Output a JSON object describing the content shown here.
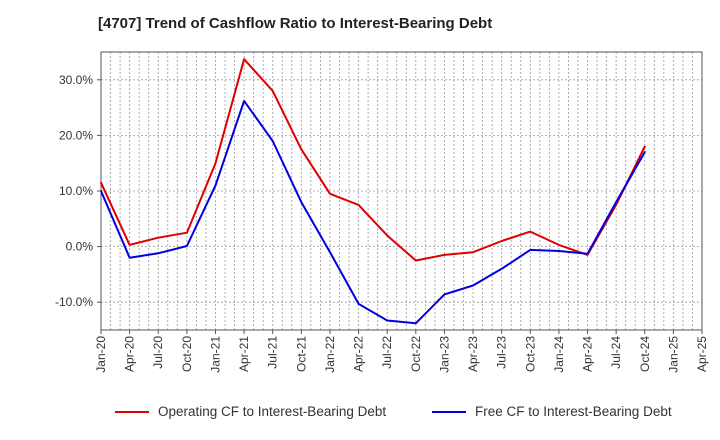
{
  "chart_data": {
    "type": "line",
    "title": "[4707]  Trend of Cashflow Ratio to Interest-Bearing Debt",
    "xlabel": "",
    "ylabel": "",
    "x_ticks": [
      "Jan-20",
      "Apr-20",
      "Jul-20",
      "Oct-20",
      "Jan-21",
      "Apr-21",
      "Jul-21",
      "Oct-21",
      "Jan-22",
      "Apr-22",
      "Jul-22",
      "Oct-22",
      "Jan-23",
      "Apr-23",
      "Jul-23",
      "Oct-23",
      "Jan-24",
      "Apr-24",
      "Jul-24",
      "Oct-24",
      "Jan-25",
      "Apr-25"
    ],
    "y_ticks": [
      "30.0%",
      "20.0%",
      "10.0%",
      "0.0%",
      "-10.0%"
    ],
    "y_tick_values": [
      30,
      20,
      10,
      0,
      -10
    ],
    "ylim": [
      -15,
      35
    ],
    "grid": true,
    "legend_position": "bottom",
    "x": [
      "Jan-20",
      "Apr-20",
      "Jul-20",
      "Oct-20",
      "Jan-21",
      "Apr-21",
      "Jul-21",
      "Oct-21",
      "Jan-22",
      "Apr-22",
      "Jul-22",
      "Oct-22",
      "Jan-23",
      "Apr-23",
      "Jul-23",
      "Oct-23",
      "Jan-24",
      "Apr-24",
      "Jul-24",
      "Oct-24"
    ],
    "series": [
      {
        "name": "Operating CF to Interest-Bearing Debt",
        "color": "#e00000",
        "values": [
          11.5,
          0.3,
          1.6,
          2.5,
          15.0,
          33.7,
          28.0,
          17.5,
          9.5,
          7.5,
          2.0,
          -2.5,
          -1.5,
          -1.0,
          1.0,
          2.7,
          0.3,
          -1.5,
          7.5,
          18.0
        ]
      },
      {
        "name": "Free CF to Interest-Bearing Debt",
        "color": "#0000e0",
        "values": [
          10.0,
          -2.0,
          -1.2,
          0.1,
          11.0,
          26.2,
          19.0,
          8.0,
          -1.0,
          -10.3,
          -13.3,
          -13.8,
          -8.6,
          -7.0,
          -4.0,
          -0.6,
          -0.8,
          -1.3,
          8.0,
          17.0
        ]
      }
    ]
  }
}
